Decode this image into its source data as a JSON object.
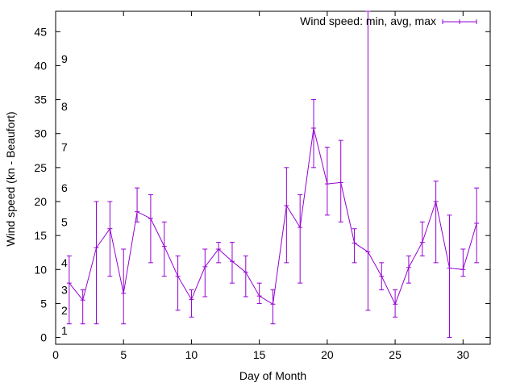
{
  "chart_data": {
    "type": "line",
    "xlabel": "Day of Month",
    "ylabel": "Wind speed (kn - Beaufort)",
    "xlim": [
      0,
      32
    ],
    "ylim": [
      -1,
      48
    ],
    "x_ticks": [
      0,
      5,
      10,
      15,
      20,
      25,
      30
    ],
    "y_ticks": [
      0,
      5,
      10,
      15,
      20,
      25,
      30,
      35,
      40,
      45
    ],
    "beaufort_labels": [
      {
        "label": "1",
        "y": 1
      },
      {
        "label": "2",
        "y": 4
      },
      {
        "label": "3",
        "y": 7
      },
      {
        "label": "4",
        "y": 11
      },
      {
        "label": "5",
        "y": 17
      },
      {
        "label": "6",
        "y": 22
      },
      {
        "label": "7",
        "y": 28
      },
      {
        "label": "8",
        "y": 34
      },
      {
        "label": "9",
        "y": 41
      }
    ],
    "legend_position": "top-right",
    "grid": false,
    "series": [
      {
        "name": "Wind speed: min, avg, max",
        "color": "#9400d3",
        "points": [
          {
            "x": 1,
            "min": 2,
            "avg": 8,
            "max": 12
          },
          {
            "x": 2,
            "min": 2,
            "avg": 5.5,
            "max": 7
          },
          {
            "x": 3,
            "min": 2,
            "avg": 13.2,
            "max": 20
          },
          {
            "x": 4,
            "min": 9,
            "avg": 16,
            "max": 20
          },
          {
            "x": 5,
            "min": 2,
            "avg": 6.5,
            "max": 13
          },
          {
            "x": 6,
            "min": 17,
            "avg": 18.5,
            "max": 22
          },
          {
            "x": 7,
            "min": 11,
            "avg": 17.5,
            "max": 21
          },
          {
            "x": 8,
            "min": 9,
            "avg": 13.4,
            "max": 17
          },
          {
            "x": 9,
            "min": 4,
            "avg": 9,
            "max": 12
          },
          {
            "x": 10,
            "min": 3,
            "avg": 5.6,
            "max": 7
          },
          {
            "x": 11,
            "min": 6,
            "avg": 10.4,
            "max": 13
          },
          {
            "x": 12,
            "min": 11,
            "avg": 13,
            "max": 14
          },
          {
            "x": 13,
            "min": 8,
            "avg": 11.2,
            "max": 14
          },
          {
            "x": 14,
            "min": 6,
            "avg": 9.6,
            "max": 12
          },
          {
            "x": 15,
            "min": 5,
            "avg": 6.1,
            "max": 8
          },
          {
            "x": 16,
            "min": 2,
            "avg": 4.9,
            "max": 7
          },
          {
            "x": 17,
            "min": 11,
            "avg": 19.4,
            "max": 25
          },
          {
            "x": 18,
            "min": 8,
            "avg": 16.2,
            "max": 21
          },
          {
            "x": 19,
            "min": 25,
            "avg": 30.8,
            "max": 35
          },
          {
            "x": 20,
            "min": 18,
            "avg": 22.6,
            "max": 28
          },
          {
            "x": 21,
            "min": 17,
            "avg": 22.8,
            "max": 29
          },
          {
            "x": 22,
            "min": 11,
            "avg": 13.9,
            "max": 16
          },
          {
            "x": 23,
            "min": 4,
            "avg": 12.6,
            "max": 48
          },
          {
            "x": 24,
            "min": 7,
            "avg": 9,
            "max": 11
          },
          {
            "x": 25,
            "min": 3,
            "avg": 4.9,
            "max": 7
          },
          {
            "x": 26,
            "min": 8,
            "avg": 10.3,
            "max": 12
          },
          {
            "x": 27,
            "min": 12,
            "avg": 14,
            "max": 17
          },
          {
            "x": 28,
            "min": 11,
            "avg": 20,
            "max": 23
          },
          {
            "x": 29,
            "min": 0,
            "avg": 10.2,
            "max": 18
          },
          {
            "x": 30,
            "min": 9,
            "avg": 10,
            "max": 13
          },
          {
            "x": 31,
            "min": 11,
            "avg": 16.8,
            "max": 22
          }
        ]
      }
    ]
  }
}
